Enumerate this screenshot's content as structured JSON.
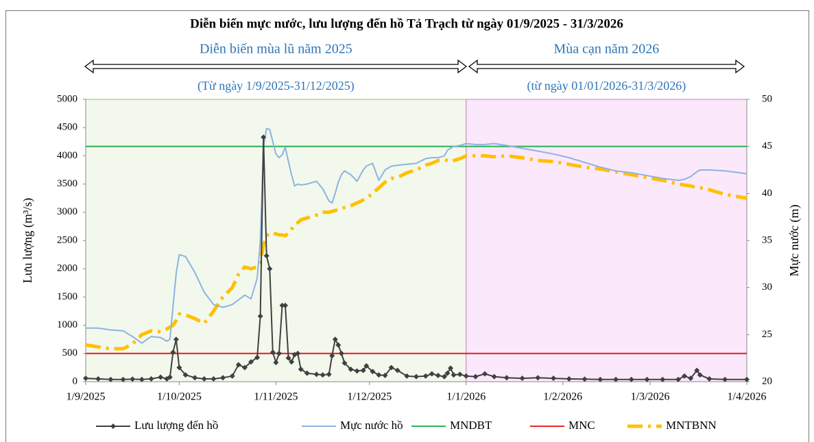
{
  "chart_data": {
    "type": "line",
    "title": "Diễn biến mực nước, lưu lượng đến hồ Tả Trạch từ ngày 01/9/2025 - 31/3/2026",
    "y_label": "Lưu lượng (m³/s)",
    "y2_label": "Mực nước (m)",
    "periods": [
      {
        "label": "Diễn biến mùa lũ năm 2025",
        "sublabel": "(Từ ngày 1/9/2025-31/12/2025)",
        "start": "2025-09-01",
        "end": "2026-01-01",
        "color": "#f2f8ec",
        "border": "#8cc06a"
      },
      {
        "label": "Mùa cạn năm 2026",
        "sublabel": "(từ ngày 01/01/2026-31/3/2026)",
        "start": "2026-01-01",
        "end": "2026-04-01",
        "color": "#fbe8fb",
        "border": "#d27ad2"
      }
    ],
    "x": [
      "2025-09-01",
      "2025-09-05",
      "2025-09-09",
      "2025-09-13",
      "2025-09-16",
      "2025-09-19",
      "2025-09-22",
      "2025-09-25",
      "2025-09-27",
      "2025-09-28",
      "2025-09-29",
      "2025-09-30",
      "2025-10-01",
      "2025-10-03",
      "2025-10-06",
      "2025-10-09",
      "2025-10-12",
      "2025-10-15",
      "2025-10-18",
      "2025-10-20",
      "2025-10-22",
      "2025-10-24",
      "2025-10-26",
      "2025-10-27",
      "2025-10-28",
      "2025-10-29",
      "2025-10-30",
      "2025-10-31",
      "2025-11-01",
      "2025-11-02",
      "2025-11-03",
      "2025-11-04",
      "2025-11-05",
      "2025-11-06",
      "2025-11-07",
      "2025-11-08",
      "2025-11-09",
      "2025-11-11",
      "2025-11-14",
      "2025-11-16",
      "2025-11-18",
      "2025-11-19",
      "2025-11-20",
      "2025-11-21",
      "2025-11-22",
      "2025-11-23",
      "2025-11-25",
      "2025-11-27",
      "2025-11-29",
      "2025-11-30",
      "2025-12-02",
      "2025-12-04",
      "2025-12-06",
      "2025-12-08",
      "2025-12-10",
      "2025-12-13",
      "2025-12-16",
      "2025-12-19",
      "2025-12-21",
      "2025-12-23",
      "2025-12-25",
      "2025-12-26",
      "2025-12-27",
      "2025-12-28",
      "2025-12-30",
      "2026-01-01",
      "2026-01-04",
      "2026-01-07",
      "2026-01-10",
      "2026-01-14",
      "2026-01-19",
      "2026-01-24",
      "2026-01-29",
      "2026-02-03",
      "2026-02-08",
      "2026-02-13",
      "2026-02-18",
      "2026-02-23",
      "2026-02-28",
      "2026-03-05",
      "2026-03-10",
      "2026-03-12",
      "2026-03-14",
      "2026-03-16",
      "2026-03-17",
      "2026-03-20",
      "2026-03-25",
      "2026-04-01"
    ],
    "series": [
      {
        "name": "Lưu lượng đến hồ",
        "color": "#404040",
        "marker": "diamond",
        "values": [
          60,
          50,
          40,
          40,
          45,
          40,
          50,
          80,
          50,
          80,
          520,
          750,
          250,
          120,
          70,
          50,
          50,
          70,
          100,
          300,
          250,
          350,
          430,
          1160,
          4330,
          2230,
          2000,
          520,
          340,
          500,
          1350,
          1350,
          420,
          350,
          480,
          500,
          220,
          150,
          130,
          120,
          130,
          460,
          750,
          650,
          500,
          330,
          220,
          190,
          200,
          280,
          180,
          120,
          110,
          250,
          200,
          100,
          90,
          100,
          140,
          110,
          90,
          150,
          240,
          120,
          130,
          100,
          90,
          140,
          90,
          70,
          60,
          70,
          60,
          50,
          45,
          40,
          40,
          40,
          40,
          40,
          40,
          100,
          60,
          200,
          120,
          50,
          40,
          40
        ]
      },
      {
        "name": "Mực nước hồ",
        "color": "#8db3e0",
        "axis": "y2",
        "values": [
          25.7,
          25.7,
          25.5,
          25.4,
          24.8,
          24.1,
          24.8,
          24.7,
          24.3,
          24.5,
          28.0,
          31.5,
          33.5,
          33.3,
          31.6,
          29.5,
          28.2,
          27.9,
          28.2,
          28.7,
          29.2,
          28.8,
          31.0,
          35.0,
          45.0,
          46.9,
          46.8,
          45.5,
          44.2,
          43.8,
          44.1,
          44.9,
          43.4,
          42.0,
          40.8,
          41.0,
          40.9,
          41.0,
          41.3,
          40.5,
          39.2,
          39.0,
          40.0,
          41.2,
          42.0,
          42.4,
          42.0,
          41.3,
          42.5,
          42.9,
          43.2,
          41.4,
          42.5,
          42.9,
          43.0,
          43.1,
          43.2,
          43.7,
          43.8,
          43.8,
          44.0,
          44.6,
          44.8,
          45.0,
          45.1,
          45.3,
          45.2,
          45.2,
          45.3,
          45.1,
          44.8,
          44.5,
          44.2,
          43.8,
          43.3,
          42.8,
          42.4,
          42.2,
          41.9,
          41.6,
          41.4,
          41.5,
          41.8,
          42.3,
          42.5,
          42.5,
          42.4,
          42.1
        ]
      },
      {
        "name": "MNDBT",
        "color": "#33b35a",
        "axis": "y2",
        "value": 45
      },
      {
        "name": "MNC",
        "color": "#e8262a",
        "axis": "y2",
        "value": 23
      },
      {
        "name": "MNTBNN",
        "color": "#ffc000",
        "axis": "y2",
        "dashed": true,
        "values": [
          23.9,
          23.7,
          23.5,
          23.5,
          24.0,
          25.0,
          25.4,
          25.3,
          25.6,
          25.8,
          26.0,
          26.5,
          27.2,
          27.1,
          26.7,
          26.2,
          27.5,
          29.0,
          30.0,
          31.4,
          32.2,
          32.0,
          32.2,
          32.6,
          34.5,
          35.5,
          35.8,
          35.8,
          35.7,
          35.6,
          35.6,
          35.5,
          35.8,
          36.2,
          36.7,
          36.9,
          37.2,
          37.4,
          37.7,
          38.0,
          38.0,
          38.1,
          38.2,
          38.3,
          38.4,
          38.5,
          38.7,
          39.0,
          39.3,
          39.5,
          40.0,
          40.6,
          41.2,
          41.6,
          41.7,
          42.2,
          42.5,
          43.0,
          43.2,
          43.5,
          43.6,
          43.5,
          43.4,
          43.5,
          43.7,
          44.0,
          44.0,
          44.0,
          43.9,
          44.0,
          43.8,
          43.5,
          43.4,
          43.1,
          42.8,
          42.6,
          42.3,
          42.0,
          41.7,
          41.4,
          41.0,
          40.9,
          40.8,
          40.6,
          40.6,
          40.4,
          39.9,
          39.5
        ]
      }
    ],
    "xlim": [
      "2025-09-01",
      "2026-04-01"
    ],
    "xticks": [
      {
        "value": "2025-09-01",
        "label": "1/9/2025"
      },
      {
        "value": "2025-10-01",
        "label": "1/10/2025"
      },
      {
        "value": "2025-11-01",
        "label": "1/11/2025"
      },
      {
        "value": "2025-12-01",
        "label": "1/12/2025"
      },
      {
        "value": "2026-01-01",
        "label": "1/1/2026"
      },
      {
        "value": "2026-02-01",
        "label": "1/2/2026"
      },
      {
        "value": "2026-03-01",
        "label": "1/3/2026"
      },
      {
        "value": "2026-04-01",
        "label": "1/4/2026"
      }
    ],
    "ylim": [
      0,
      5000
    ],
    "yticks": [
      0,
      500,
      1000,
      1500,
      2000,
      2500,
      3000,
      3500,
      4000,
      4500,
      5000
    ],
    "y2lim": [
      20,
      50
    ],
    "y2ticks": [
      20,
      25,
      30,
      35,
      40,
      45,
      50
    ],
    "legend": "bottom"
  }
}
